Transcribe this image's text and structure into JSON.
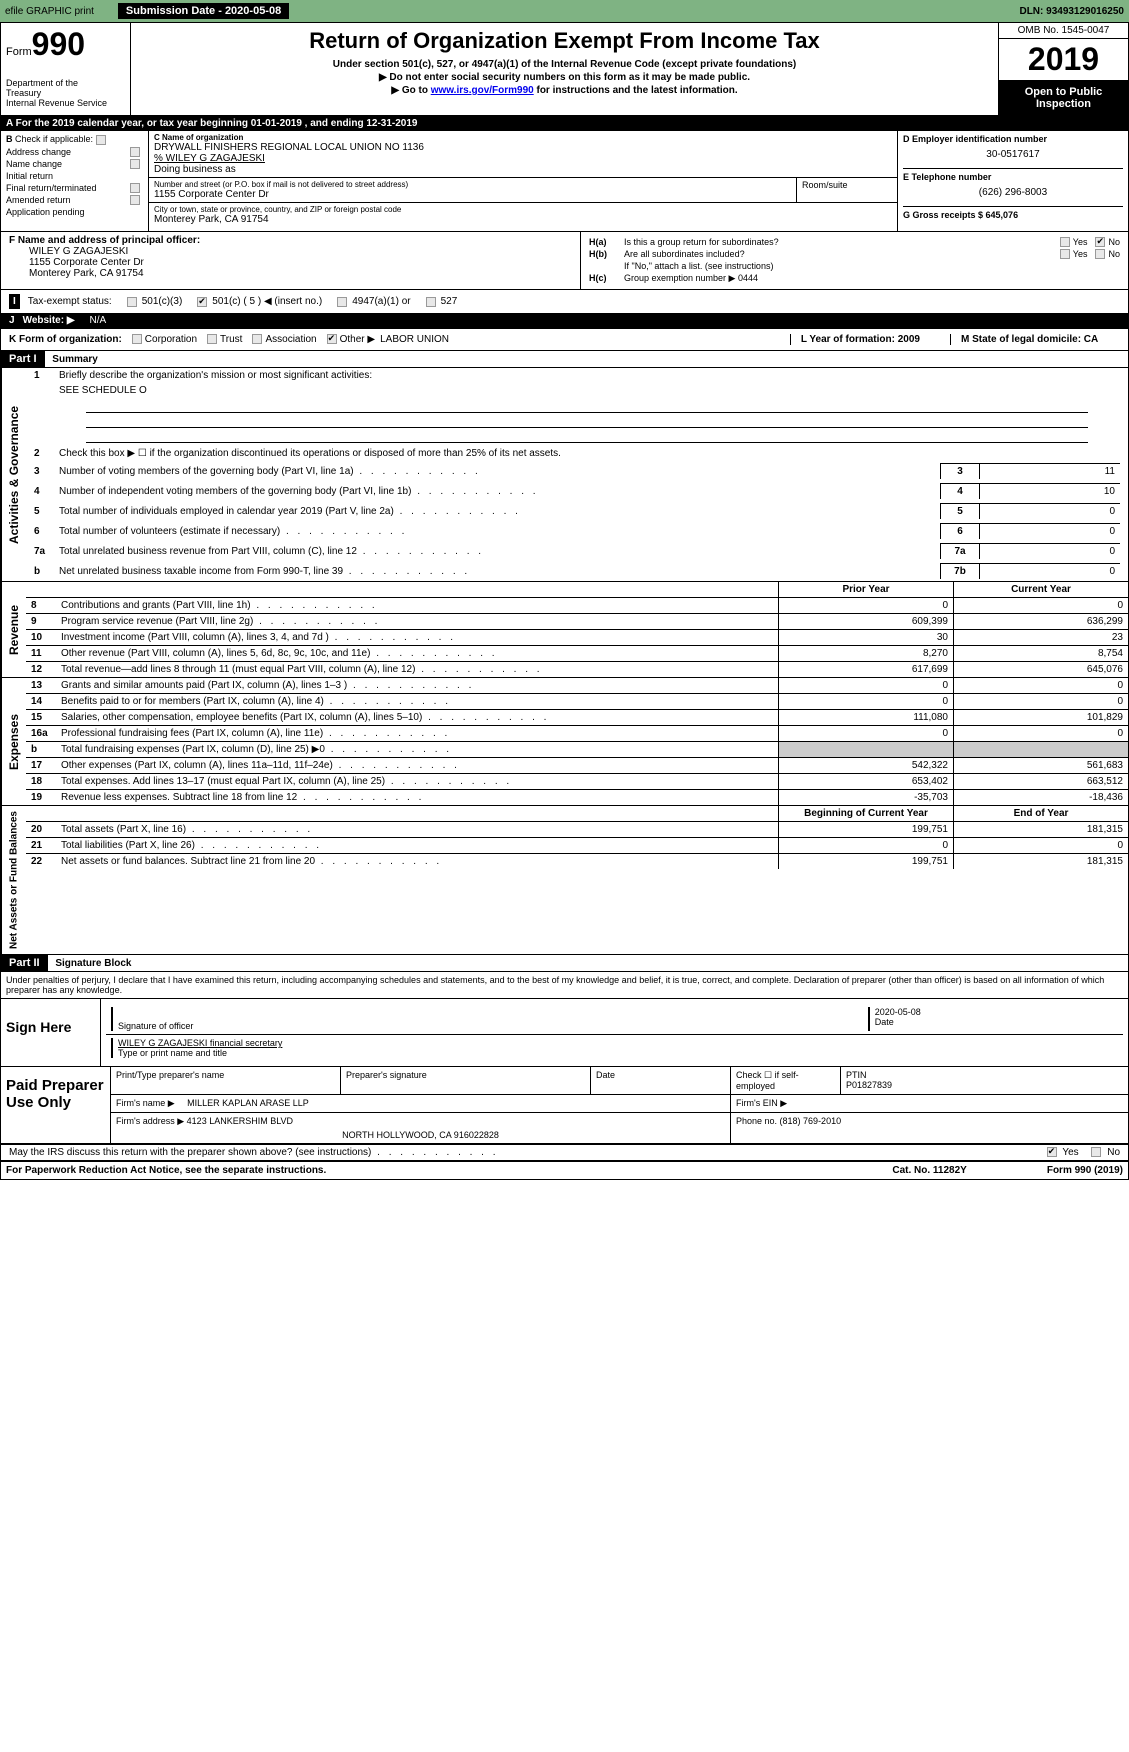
{
  "topbar": {
    "efile_label": "efile GRAPHIC print",
    "submission_label": "Submission Date - 2020-05-08",
    "dln": "DLN: 93493129016250"
  },
  "header": {
    "form_prefix": "Form",
    "form_num": "990",
    "dept1": "Department of the",
    "dept2": "Treasury",
    "dept3": "Internal Revenue Service",
    "title": "Return of Organization Exempt From Income Tax",
    "subtitle1": "Under section 501(c), 527, or 4947(a)(1) of the Internal Revenue Code (except private foundations)",
    "subtitle2": "▶ Do not enter social security numbers on this form as it may be made public.",
    "subtitle3_a": "▶ Go to ",
    "subtitle3_link": "www.irs.gov/Form990",
    "subtitle3_b": " for instructions and the latest information.",
    "omb": "OMB No. 1545-0047",
    "year": "2019",
    "inspection": "Open to Public Inspection"
  },
  "taxyear": "For the 2019 calendar year, or tax year beginning 01-01-2019         , and ending 12-31-2019",
  "sectionB": {
    "check_label": "Check if applicable:",
    "items": [
      "Address change",
      "Name change",
      "Initial return",
      "Final return/terminated",
      "Amended return",
      "Application pending"
    ],
    "c_label": "C Name of organization",
    "org_name": "DRYWALL FINISHERS REGIONAL LOCAL UNION NO 1136",
    "care_of": "% WILEY G ZAGAJESKI",
    "dba_label": "Doing business as",
    "street_label": "Number and street (or P.O. box if mail is not delivered to street address)",
    "street": "1155 Corporate Center Dr",
    "room_label": "Room/suite",
    "city_label": "City or town, state or province, country, and ZIP or foreign postal code",
    "city": "Monterey Park, CA  91754",
    "d_label": "D Employer identification number",
    "ein": "30-0517617",
    "e_label": "E Telephone number",
    "phone": "(626) 296-8003",
    "g_label": "G Gross receipts $ 645,076"
  },
  "sectionF": {
    "label": "F  Name and address of principal officer:",
    "name": "WILEY G ZAGAJESKI",
    "street": "1155 Corporate Center Dr",
    "city": "Monterey Park, CA  91754"
  },
  "sectionH": {
    "ha": "H(a)",
    "ha_text": "Is this a group return for subordinates?",
    "hb": "H(b)",
    "hb_text": "Are all subordinates included?",
    "hb_note": "If \"No,\" attach a list. (see instructions)",
    "hc": "H(c)",
    "hc_text": "Group exemption number ▶  0444",
    "yes": "Yes",
    "no": "No"
  },
  "sectionI": {
    "label": "Tax-exempt status:",
    "opt1": "501(c)(3)",
    "opt2": "501(c) ( 5 ) ◀ (insert no.)",
    "opt3": "4947(a)(1) or",
    "opt4": "527"
  },
  "sectionJ": {
    "label": "Website: ▶",
    "value": "N/A"
  },
  "sectionK": {
    "label": "K Form of organization:",
    "opts": [
      "Corporation",
      "Trust",
      "Association",
      "Other ▶"
    ],
    "value": "LABOR UNION",
    "l_label": "L Year of formation: 2009",
    "m_label": "M State of legal domicile: CA"
  },
  "part1": {
    "header": "Part I",
    "title": "Summary",
    "line1_label": "Briefly describe the organization's mission or most significant activities:",
    "line1_value": "SEE SCHEDULE O",
    "line2": "Check this box ▶ ☐ if the organization discontinued its operations or disposed of more than 25% of its net assets.",
    "governance_label": "Activities & Governance",
    "lines": [
      {
        "num": "3",
        "desc": "Number of voting members of the governing body (Part VI, line 1a)",
        "box": "3",
        "val": "11"
      },
      {
        "num": "4",
        "desc": "Number of independent voting members of the governing body (Part VI, line 1b)",
        "box": "4",
        "val": "10"
      },
      {
        "num": "5",
        "desc": "Total number of individuals employed in calendar year 2019 (Part V, line 2a)",
        "box": "5",
        "val": "0"
      },
      {
        "num": "6",
        "desc": "Total number of volunteers (estimate if necessary)",
        "box": "6",
        "val": "0"
      },
      {
        "num": "7a",
        "desc": "Total unrelated business revenue from Part VIII, column (C), line 12",
        "box": "7a",
        "val": "0"
      },
      {
        "num": "b",
        "desc": "Net unrelated business taxable income from Form 990-T, line 39",
        "box": "7b",
        "val": "0"
      }
    ]
  },
  "revenue": {
    "label": "Revenue",
    "prior_header": "Prior Year",
    "current_header": "Current Year",
    "rows": [
      {
        "num": "8",
        "desc": "Contributions and grants (Part VIII, line 1h)",
        "prior": "0",
        "current": "0"
      },
      {
        "num": "9",
        "desc": "Program service revenue (Part VIII, line 2g)",
        "prior": "609,399",
        "current": "636,299"
      },
      {
        "num": "10",
        "desc": "Investment income (Part VIII, column (A), lines 3, 4, and 7d )",
        "prior": "30",
        "current": "23"
      },
      {
        "num": "11",
        "desc": "Other revenue (Part VIII, column (A), lines 5, 6d, 8c, 9c, 10c, and 11e)",
        "prior": "8,270",
        "current": "8,754"
      },
      {
        "num": "12",
        "desc": "Total revenue—add lines 8 through 11 (must equal Part VIII, column (A), line 12)",
        "prior": "617,699",
        "current": "645,076"
      }
    ]
  },
  "expenses": {
    "label": "Expenses",
    "rows": [
      {
        "num": "13",
        "desc": "Grants and similar amounts paid (Part IX, column (A), lines 1–3 )",
        "prior": "0",
        "current": "0"
      },
      {
        "num": "14",
        "desc": "Benefits paid to or for members (Part IX, column (A), line 4)",
        "prior": "0",
        "current": "0"
      },
      {
        "num": "15",
        "desc": "Salaries, other compensation, employee benefits (Part IX, column (A), lines 5–10)",
        "prior": "111,080",
        "current": "101,829"
      },
      {
        "num": "16a",
        "desc": "Professional fundraising fees (Part IX, column (A), line 11e)",
        "prior": "0",
        "current": "0"
      },
      {
        "num": "b",
        "desc": "Total fundraising expenses (Part IX, column (D), line 25) ▶0",
        "prior": "",
        "current": ""
      },
      {
        "num": "17",
        "desc": "Other expenses (Part IX, column (A), lines 11a–11d, 11f–24e)",
        "prior": "542,322",
        "current": "561,683"
      },
      {
        "num": "18",
        "desc": "Total expenses. Add lines 13–17 (must equal Part IX, column (A), line 25)",
        "prior": "653,402",
        "current": "663,512"
      },
      {
        "num": "19",
        "desc": "Revenue less expenses. Subtract line 18 from line 12",
        "prior": "-35,703",
        "current": "-18,436"
      }
    ]
  },
  "netassets": {
    "label": "Net Assets or Fund Balances",
    "begin_header": "Beginning of Current Year",
    "end_header": "End of Year",
    "rows": [
      {
        "num": "20",
        "desc": "Total assets (Part X, line 16)",
        "prior": "199,751",
        "current": "181,315"
      },
      {
        "num": "21",
        "desc": "Total liabilities (Part X, line 26)",
        "prior": "0",
        "current": "0"
      },
      {
        "num": "22",
        "desc": "Net assets or fund balances. Subtract line 21 from line 20",
        "prior": "199,751",
        "current": "181,315"
      }
    ]
  },
  "part2": {
    "header": "Part II",
    "title": "Signature Block",
    "perjury": "Under penalties of perjury, I declare that I have examined this return, including accompanying schedules and statements, and to the best of my knowledge and belief, it is true, correct, and complete. Declaration of preparer (other than officer) is based on all information of which preparer has any knowledge."
  },
  "sign": {
    "label": "Sign Here",
    "sig_label": "Signature of officer",
    "date": "2020-05-08",
    "date_label": "Date",
    "name": "WILEY G ZAGAJESKI  financial secretary",
    "name_label": "Type or print name and title"
  },
  "paid": {
    "label": "Paid Preparer Use Only",
    "h1": "Print/Type preparer's name",
    "h2": "Preparer's signature",
    "h3": "Date",
    "h4": "Check ☐ if self-employed",
    "h5": "PTIN",
    "ptin": "P01827839",
    "firm_label": "Firm's name     ▶",
    "firm": "MILLER KAPLAN ARASE LLP",
    "ein_label": "Firm's EIN ▶",
    "addr_label": "Firm's address ▶",
    "addr": "4123 LANKERSHIM BLVD",
    "addr2": "NORTH HOLLYWOOD, CA  916022828",
    "phone_label": "Phone no. (818) 769-2010"
  },
  "discuss": "May the IRS discuss this return with the preparer shown above? (see instructions)",
  "footer": {
    "left": "For Paperwork Reduction Act Notice, see the separate instructions.",
    "center": "Cat. No. 11282Y",
    "right": "Form 990 (2019)"
  }
}
